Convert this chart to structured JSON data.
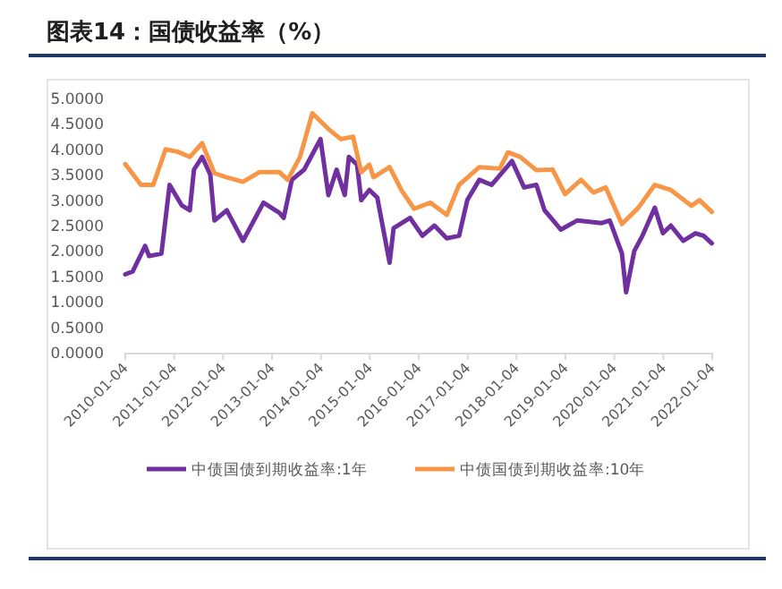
{
  "chart_data": {
    "type": "line",
    "title": "图表14：国债收益率（%）",
    "series": [
      {
        "name": "中债国债到期收益率:1年",
        "color": "#7030a0",
        "x": [
          "2010-01-04",
          "2010-03",
          "2010-06",
          "2010-07",
          "2010-10",
          "2010-12",
          "2011-03",
          "2011-05",
          "2011-06",
          "2011-08",
          "2011-10",
          "2011-11",
          "2012-02",
          "2012-06",
          "2012-09",
          "2012-11",
          "2013-03",
          "2013-04",
          "2013-06",
          "2013-09",
          "2013-12",
          "2014-01",
          "2014-03",
          "2014-05",
          "2014-07",
          "2014-08",
          "2014-10",
          "2014-11",
          "2015-01",
          "2015-03",
          "2015-06",
          "2015-07",
          "2015-11",
          "2016-02",
          "2016-05",
          "2016-08",
          "2016-11",
          "2017-01",
          "2017-04",
          "2017-07",
          "2017-12",
          "2018-03",
          "2018-06",
          "2018-08",
          "2018-12",
          "2019-04",
          "2019-10",
          "2019-12",
          "2020-03",
          "2020-04",
          "2020-06",
          "2020-08",
          "2020-11",
          "2021-01",
          "2021-03",
          "2021-06",
          "2021-09",
          "2021-11",
          "2022-01"
        ],
        "values": [
          1.54,
          1.6,
          2.1,
          1.9,
          1.95,
          3.3,
          2.9,
          2.8,
          3.6,
          3.85,
          3.5,
          2.6,
          2.8,
          2.2,
          2.65,
          2.95,
          2.75,
          2.65,
          3.4,
          3.6,
          4.05,
          4.2,
          3.1,
          3.6,
          3.1,
          3.85,
          3.7,
          3.0,
          3.2,
          3.05,
          1.77,
          2.45,
          2.65,
          2.3,
          2.5,
          2.25,
          2.3,
          3.0,
          3.4,
          3.3,
          3.77,
          3.25,
          3.3,
          2.8,
          2.42,
          2.6,
          2.55,
          2.6,
          1.95,
          1.19,
          2.0,
          2.3,
          2.85,
          2.35,
          2.5,
          2.2,
          2.35,
          2.3,
          2.15
        ]
      },
      {
        "name": "中债国债到期收益率:10年",
        "color": "#f79646",
        "x": [
          "2010-01-04",
          "2010-05",
          "2010-08",
          "2010-11",
          "2011-02",
          "2011-05",
          "2011-08",
          "2011-11",
          "2012-02",
          "2012-06",
          "2012-10",
          "2013-03",
          "2013-05",
          "2013-08",
          "2013-11",
          "2014-03",
          "2014-06",
          "2014-09",
          "2014-11",
          "2015-01",
          "2015-02",
          "2015-06",
          "2015-09",
          "2015-12",
          "2016-04",
          "2016-08",
          "2016-11",
          "2017-04",
          "2017-09",
          "2017-11",
          "2018-02",
          "2018-06",
          "2018-10",
          "2019-01",
          "2019-05",
          "2019-08",
          "2019-11",
          "2020-03",
          "2020-07",
          "2020-11",
          "2021-03",
          "2021-08",
          "2021-10",
          "2022-01"
        ],
        "values": [
          3.71,
          3.3,
          3.3,
          4.0,
          3.95,
          3.85,
          4.12,
          3.53,
          3.45,
          3.36,
          3.55,
          3.55,
          3.4,
          3.85,
          4.71,
          4.4,
          4.2,
          4.25,
          3.55,
          3.7,
          3.45,
          3.65,
          3.18,
          2.83,
          2.95,
          2.71,
          3.3,
          3.65,
          3.62,
          3.94,
          3.85,
          3.59,
          3.6,
          3.12,
          3.4,
          3.15,
          3.25,
          2.53,
          2.85,
          3.3,
          3.2,
          2.89,
          3.0,
          2.77
        ]
      }
    ],
    "xlim": [
      "2010-01-04",
      "2022-01-04"
    ],
    "xticks": [
      "2010-01-04",
      "2011-01-04",
      "2012-01-04",
      "2013-01-04",
      "2014-01-04",
      "2015-01-04",
      "2016-01-04",
      "2017-01-04",
      "2018-01-04",
      "2019-01-04",
      "2020-01-04",
      "2021-01-04",
      "2022-01-04"
    ],
    "ylim": [
      0,
      5
    ],
    "yticks": [
      {
        "value": 0,
        "label": "0.0000"
      },
      {
        "value": 0.5,
        "label": "0.5000"
      },
      {
        "value": 1,
        "label": "1.0000"
      },
      {
        "value": 1.5,
        "label": "1.5000"
      },
      {
        "value": 2,
        "label": "2.0000"
      },
      {
        "value": 2.5,
        "label": "2.5000"
      },
      {
        "value": 3,
        "label": "3.0000"
      },
      {
        "value": 3.5,
        "label": "3.5000"
      },
      {
        "value": 4,
        "label": "4.0000"
      },
      {
        "value": 4.5,
        "label": "4.5000"
      },
      {
        "value": 5,
        "label": "5.0000"
      }
    ],
    "legend": "bottom",
    "grid": false
  }
}
